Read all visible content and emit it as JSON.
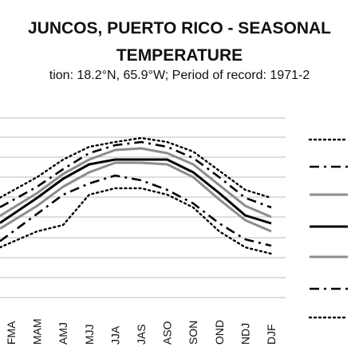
{
  "chart_data": {
    "type": "line",
    "title_line1": "JUNCOS, PUERTO RICO - SEASONAL",
    "title_line2": "TEMPERATURE",
    "subtitle": "tion: 18.2°N, 65.9°W; Period of record: 1971-2",
    "categories": [
      "FMA",
      "MAM",
      "AMJ",
      "MJJ",
      "JJA",
      "JAS",
      "ASO",
      "SON",
      "OND",
      "NDJ",
      "DJF"
    ],
    "first_category_partial": "",
    "grid": true,
    "legend": "right",
    "series": [
      {
        "style": "dotted-top",
        "color": "#000000",
        "values": [
          240,
          222,
          200,
          184,
          178,
          173,
          178,
          190,
          214,
          238,
          248
        ]
      },
      {
        "style": "dashdot-top",
        "color": "#000000",
        "values": [
          252,
          234,
          212,
          192,
          182,
          178,
          184,
          198,
          222,
          248,
          260
        ]
      },
      {
        "style": "gray-top",
        "color": "#8c8c8c",
        "values": [
          262,
          242,
          218,
          200,
          188,
          186,
          192,
          206,
          232,
          258,
          272
        ]
      },
      {
        "style": "solid-median",
        "color": "#000000",
        "values": [
          270,
          248,
          224,
          206,
          200,
          200,
          200,
          216,
          242,
          270,
          280
        ]
      },
      {
        "style": "gray-bottom",
        "color": "#8c8c8c",
        "values": [
          278,
          258,
          234,
          216,
          204,
          204,
          206,
          222,
          250,
          276,
          290
        ]
      },
      {
        "style": "dashdot-bottom",
        "color": "#000000",
        "values": [
          292,
          268,
          244,
          230,
          220,
          226,
          238,
          255,
          280,
          300,
          308
        ]
      },
      {
        "style": "dotted-bottom",
        "color": "#000000",
        "values": [
          304,
          290,
          282,
          244,
          236,
          236,
          244,
          260,
          290,
          310,
          318
        ]
      }
    ],
    "legend_entries": [
      "",
      "",
      "",
      "",
      "",
      "",
      ""
    ]
  }
}
